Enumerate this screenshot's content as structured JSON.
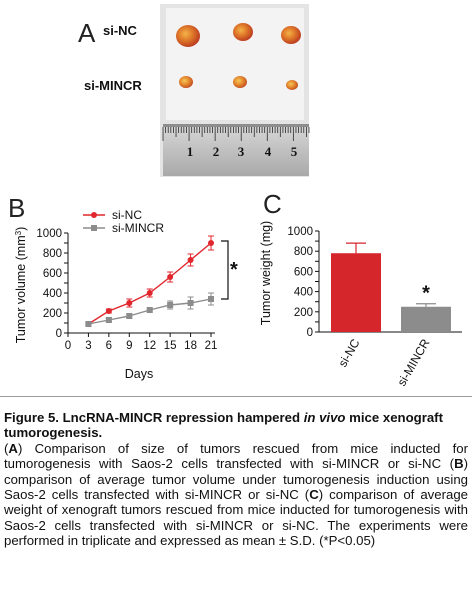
{
  "panel_a": {
    "label": "A",
    "groups": [
      "si-NC",
      "si-MINCR"
    ],
    "ruler_numbers": [
      "1",
      "2",
      "3",
      "4",
      "5"
    ]
  },
  "panel_b": {
    "label": "B",
    "significance": "*",
    "chart_data": {
      "type": "line",
      "xlabel": "Days",
      "ylabel": "Tumor volume (mm3)",
      "ylabel_main": "Tumor volume (mm",
      "ylabel_sup": "3",
      "ylabel_end": ")",
      "xlim": [
        0,
        21
      ],
      "ylim": [
        0,
        1000
      ],
      "x_ticks": [
        0,
        3,
        6,
        9,
        12,
        15,
        18,
        21
      ],
      "y_ticks": [
        0,
        100,
        200,
        300,
        400,
        500,
        600,
        700,
        800,
        900,
        1000
      ],
      "x": [
        3,
        6,
        9,
        12,
        15,
        18,
        21
      ],
      "series": [
        {
          "name": "si-NC",
          "color": "#e0262c",
          "marker": "circle",
          "values": [
            90,
            220,
            300,
            400,
            560,
            730,
            900
          ],
          "errors": [
            10,
            20,
            40,
            40,
            50,
            60,
            70
          ]
        },
        {
          "name": "si-MINCR",
          "color": "#8c8c8c",
          "marker": "square",
          "values": [
            90,
            130,
            170,
            230,
            280,
            300,
            340
          ],
          "errors": [
            10,
            20,
            20,
            20,
            40,
            60,
            60
          ]
        }
      ],
      "legend": "top-left"
    }
  },
  "panel_c": {
    "label": "C",
    "significance": "*",
    "chart_data": {
      "type": "bar",
      "ylabel": "Tumor weight (mg)",
      "ylim": [
        0,
        1000
      ],
      "y_ticks": [
        0,
        100,
        200,
        300,
        400,
        500,
        600,
        700,
        800,
        900,
        1000
      ],
      "categories": [
        "si-NC",
        "si-MINCR"
      ],
      "values": [
        780,
        250
      ],
      "errors": [
        100,
        30
      ],
      "colors": [
        "#d4262b",
        "#8c8c8c"
      ]
    }
  },
  "caption": {
    "title_main": "Figure 5. LncRNA-MINCR repression hampered ",
    "title_italic": "in vivo",
    "title_end": " mice xenograft tumorogenesis.",
    "a_label": "A",
    "a_text": " Comparison of size of tumors rescued from mice inducted for tumorogenesis with Saos-2 cells transfected with si-MINCR or si-NC ",
    "b_label": "B",
    "b_text": " comparison of average tumor volume under tumorogenesis induction using Saos-2 cells transfected with si-MINCR or si-NC ",
    "c_label": "C",
    "c_text": " comparison of average weight of xenograft tumors rescued from mice inducted for tumorogenesis with Saos-2 cells transfected with si-MINCR or si-NC. The experiments were performed in triplicate and expressed as mean ± S.D. (*P<0.05)"
  }
}
